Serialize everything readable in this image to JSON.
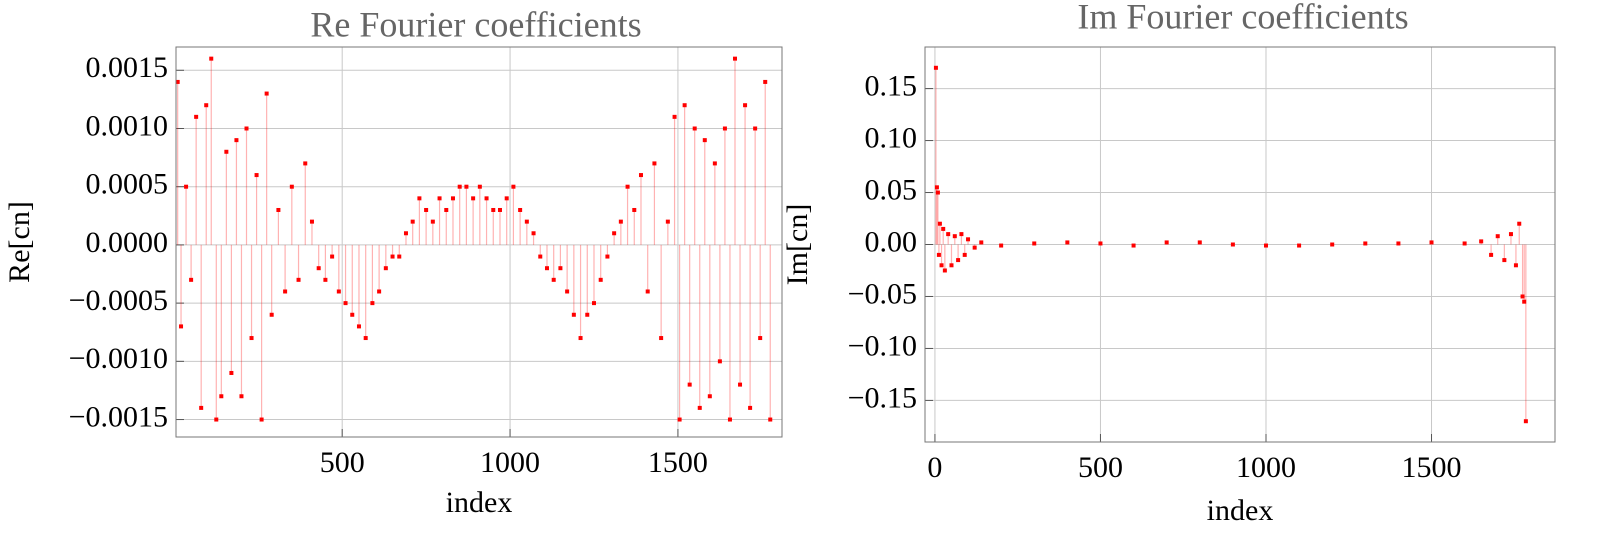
{
  "chart_data": [
    {
      "type": "stem",
      "title": "Re Fourier coefficients",
      "xlabel": "index",
      "ylabel": "Re[cn]",
      "color": "#ff0000",
      "grid": true,
      "xlim": [
        5,
        1810
      ],
      "ylim": [
        -0.00165,
        0.0017
      ],
      "xticks": [
        500,
        1000,
        1500
      ],
      "yticks": [
        0.0015,
        {
          "value": 0.001,
          "label": "0.0010"
        },
        0.0005,
        {
          "value": 0,
          "label": "0.0000"
        },
        {
          "value": -0.0005,
          "label": "−0.0005"
        },
        {
          "value": -0.001,
          "label": "−0.0010"
        },
        {
          "value": -0.0015,
          "label": "−0.0015"
        }
      ],
      "x": [
        10,
        20,
        35,
        50,
        65,
        80,
        95,
        110,
        125,
        140,
        155,
        170,
        185,
        200,
        215,
        230,
        245,
        260,
        275,
        290,
        310,
        330,
        350,
        370,
        390,
        410,
        430,
        450,
        470,
        490,
        510,
        530,
        550,
        570,
        590,
        610,
        630,
        650,
        670,
        690,
        710,
        730,
        750,
        770,
        790,
        810,
        830,
        850,
        870,
        890,
        910,
        930,
        950,
        970,
        990,
        1010,
        1030,
        1050,
        1070,
        1090,
        1110,
        1130,
        1150,
        1170,
        1190,
        1210,
        1230,
        1250,
        1270,
        1290,
        1310,
        1330,
        1350,
        1370,
        1390,
        1410,
        1430,
        1450,
        1470,
        1490,
        1505,
        1520,
        1535,
        1550,
        1565,
        1580,
        1595,
        1610,
        1625,
        1640,
        1655,
        1670,
        1685,
        1700,
        1715,
        1730,
        1745,
        1760,
        1775
      ],
      "values": [
        0.0014,
        -0.0007,
        0.0005,
        -0.0003,
        0.0011,
        -0.0014,
        0.0012,
        0.0016,
        -0.0015,
        -0.0013,
        0.0008,
        -0.0011,
        0.0009,
        -0.0013,
        0.001,
        -0.0008,
        0.0006,
        -0.0015,
        0.0013,
        -0.0006,
        0.0003,
        -0.0004,
        0.0005,
        -0.0003,
        0.0007,
        0.0002,
        -0.0002,
        -0.0003,
        -0.0001,
        -0.0004,
        -0.0005,
        -0.0006,
        -0.0007,
        -0.0008,
        -0.0005,
        -0.0004,
        -0.0002,
        -0.0001,
        -0.0001,
        0.0001,
        0.0002,
        0.0004,
        0.0003,
        0.0002,
        0.0004,
        0.0003,
        0.0004,
        0.0005,
        0.0005,
        0.0004,
        0.0005,
        0.0004,
        0.0003,
        0.0003,
        0.0004,
        0.0005,
        0.0003,
        0.0002,
        0.0001,
        -0.0001,
        -0.0002,
        -0.0003,
        -0.0002,
        -0.0004,
        -0.0006,
        -0.0008,
        -0.0006,
        -0.0005,
        -0.0003,
        -0.0001,
        0.0001,
        0.0002,
        0.0005,
        0.0003,
        0.0006,
        -0.0004,
        0.0007,
        -0.0008,
        0.0002,
        0.0011,
        -0.0015,
        0.0012,
        -0.0012,
        0.001,
        -0.0014,
        0.0009,
        -0.0013,
        0.0007,
        -0.001,
        0.001,
        -0.0015,
        0.0016,
        -0.0012,
        0.0012,
        -0.0014,
        0.001,
        -0.0008,
        0.0014,
        -0.0015
      ]
    },
    {
      "type": "stem",
      "title": "Im Fourier coefficients",
      "xlabel": "index",
      "ylabel": "Im[cn]",
      "color": "#ff0000",
      "grid": true,
      "xlim": [
        -30,
        1873
      ],
      "ylim": [
        -0.19,
        0.19
      ],
      "xticks": [
        0,
        500,
        1000,
        1500
      ],
      "yticks": [
        0.15,
        {
          "value": 0.1,
          "label": "0.10"
        },
        0.05,
        {
          "value": 0,
          "label": "0.00"
        },
        {
          "value": -0.05,
          "label": "−0.05"
        },
        {
          "value": -0.1,
          "label": "−0.10"
        },
        {
          "value": -0.15,
          "label": "−0.15"
        }
      ],
      "x": [
        3,
        6,
        9,
        12,
        15,
        20,
        25,
        30,
        40,
        50,
        60,
        70,
        80,
        90,
        100,
        120,
        140,
        200,
        300,
        400,
        500,
        600,
        700,
        800,
        900,
        1000,
        1100,
        1200,
        1300,
        1400,
        1500,
        1600,
        1650,
        1680,
        1700,
        1720,
        1740,
        1755,
        1765,
        1775,
        1780,
        1785
      ],
      "values": [
        0.17,
        0.055,
        0.05,
        -0.01,
        0.02,
        -0.02,
        0.015,
        -0.025,
        0.01,
        -0.02,
        0.008,
        -0.015,
        0.01,
        -0.01,
        0.005,
        -0.003,
        0.002,
        -0.001,
        0.001,
        0.002,
        0.001,
        -0.001,
        0.002,
        0.002,
        0,
        -0.001,
        -0.001,
        0,
        0.001,
        0.001,
        0.002,
        0.001,
        0.003,
        -0.01,
        0.008,
        -0.015,
        0.01,
        -0.02,
        0.02,
        -0.05,
        -0.055,
        -0.17
      ]
    }
  ]
}
